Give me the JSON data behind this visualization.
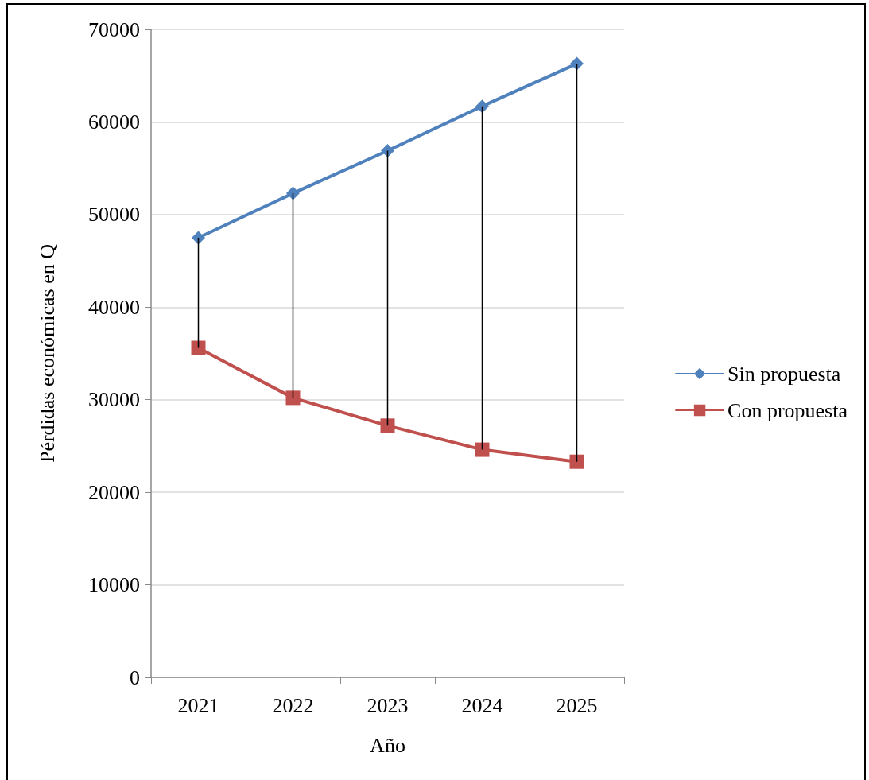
{
  "chart_data": {
    "type": "line",
    "xlabel": "Año",
    "ylabel": "Pérdidas económicas en Q",
    "categories": [
      "2021",
      "2022",
      "2023",
      "2024",
      "2025"
    ],
    "series": [
      {
        "name": "Sin propuesta",
        "color": "#4f81bd",
        "marker": "diamond",
        "values": [
          47500,
          52300,
          56900,
          61700,
          66300
        ]
      },
      {
        "name": "Con propuesta",
        "color": "#c0504d",
        "marker": "square",
        "values": [
          35600,
          30200,
          27200,
          24600,
          23300
        ],
        "errors": [
          [
            35600,
            47500
          ],
          [
            30200,
            52300
          ],
          [
            27200,
            56900
          ],
          [
            24600,
            61700
          ],
          [
            23300,
            66300
          ]
        ]
      }
    ],
    "ylim": [
      0,
      70000
    ],
    "yticks": [
      0,
      10000,
      20000,
      30000,
      40000,
      50000,
      60000,
      70000
    ],
    "grid": "y",
    "legend": "right",
    "line_style": "solid"
  }
}
